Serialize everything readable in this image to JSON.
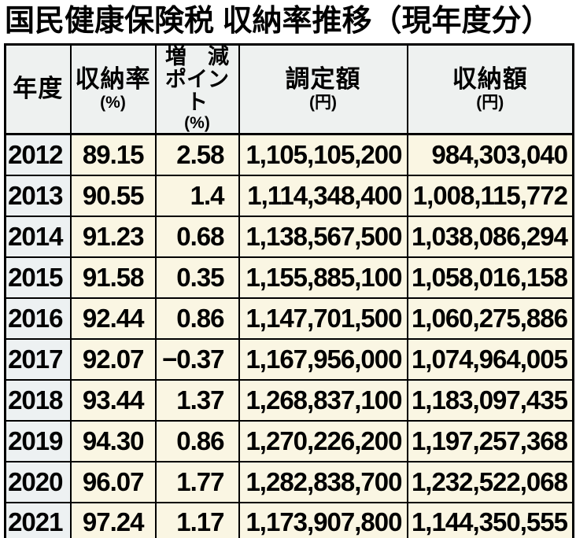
{
  "title": "国民健康保険税 収納率推移（現年度分）",
  "colors": {
    "border": "#000000",
    "title_color": "#000000",
    "header_bg": "#eef1f0",
    "year_col_bg": "#edf1f2",
    "data_bg": "#faf6e3"
  },
  "table": {
    "headers": {
      "year": {
        "label": "年度"
      },
      "rate": {
        "label": "収納率",
        "unit": "(%)"
      },
      "change": {
        "label_line1": "増　減",
        "label_line2": "ポイント",
        "unit": "(%)"
      },
      "assessed": {
        "label": "調定額",
        "unit": "(円)"
      },
      "collected": {
        "label": "収納額",
        "unit": "(円)"
      }
    },
    "rows": [
      {
        "year": "2012",
        "rate": "89.15",
        "change": "2.58",
        "assessed": "1,105,105,200",
        "collected": "984,303,040"
      },
      {
        "year": "2013",
        "rate": "90.55",
        "change": "1.4",
        "assessed": "1,114,348,400",
        "collected": "1,008,115,772"
      },
      {
        "year": "2014",
        "rate": "91.23",
        "change": "0.68",
        "assessed": "1,138,567,500",
        "collected": "1,038,086,294"
      },
      {
        "year": "2015",
        "rate": "91.58",
        "change": "0.35",
        "assessed": "1,155,885,100",
        "collected": "1,058,016,158"
      },
      {
        "year": "2016",
        "rate": "92.44",
        "change": "0.86",
        "assessed": "1,147,701,500",
        "collected": "1,060,275,886"
      },
      {
        "year": "2017",
        "rate": "92.07",
        "change": "−0.37",
        "assessed": "1,167,956,000",
        "collected": "1,074,964,005"
      },
      {
        "year": "2018",
        "rate": "93.44",
        "change": "1.37",
        "assessed": "1,268,837,100",
        "collected": "1,183,097,435"
      },
      {
        "year": "2019",
        "rate": "94.30",
        "change": "0.86",
        "assessed": "1,270,226,200",
        "collected": "1,197,257,368"
      },
      {
        "year": "2020",
        "rate": "96.07",
        "change": "1.77",
        "assessed": "1,282,838,700",
        "collected": "1,232,522,068"
      },
      {
        "year": "2021",
        "rate": "97.24",
        "change": "1.17",
        "assessed": "1,173,907,800",
        "collected": "1,144,350,555"
      }
    ]
  },
  "chart_data": {
    "type": "table",
    "title": "国民健康保険税 収納率推移（現年度分）",
    "columns": [
      "年度",
      "収納率(%)",
      "増減ポイント(%)",
      "調定額(円)",
      "収納額(円)"
    ],
    "rows": [
      [
        2012,
        89.15,
        2.58,
        1105105200,
        984303040
      ],
      [
        2013,
        90.55,
        1.4,
        1114348400,
        1008115772
      ],
      [
        2014,
        91.23,
        0.68,
        1138567500,
        1038086294
      ],
      [
        2015,
        91.58,
        0.35,
        1155885100,
        1058016158
      ],
      [
        2016,
        92.44,
        0.86,
        1147701500,
        1060275886
      ],
      [
        2017,
        92.07,
        -0.37,
        1167956000,
        1074964005
      ],
      [
        2018,
        93.44,
        1.37,
        1268837100,
        1183097435
      ],
      [
        2019,
        94.3,
        0.86,
        1270226200,
        1197257368
      ],
      [
        2020,
        96.07,
        1.77,
        1282838700,
        1232522068
      ],
      [
        2021,
        97.24,
        1.17,
        1173907800,
        1144350555
      ]
    ]
  }
}
